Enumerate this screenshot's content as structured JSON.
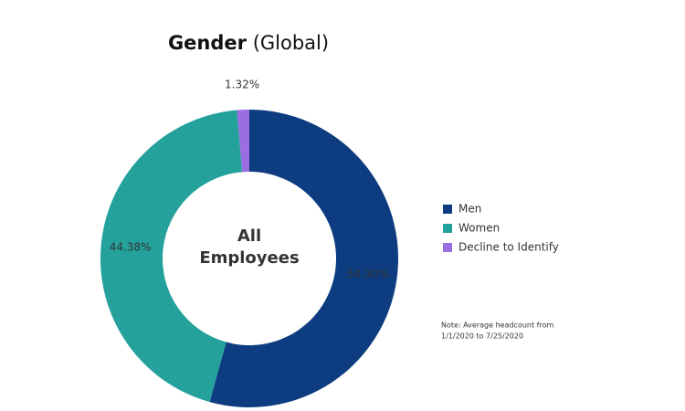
{
  "chart_data": {
    "type": "donut",
    "title": "Gender",
    "title_qualifier": "(Global)",
    "center_label": [
      "All",
      "Employees"
    ],
    "categories": [
      "Men",
      "Women",
      "Decline to Identify"
    ],
    "values": [
      54.3,
      44.38,
      1.32
    ],
    "value_labels": [
      "54.30%",
      "44.38%",
      "1.32%"
    ],
    "colors": [
      "#0d3c80",
      "#25a19c",
      "#9a6ee2"
    ],
    "legend": "right",
    "note": [
      "Note: Average headcount from",
      "1/1/2020 to 7/25/2020"
    ]
  }
}
